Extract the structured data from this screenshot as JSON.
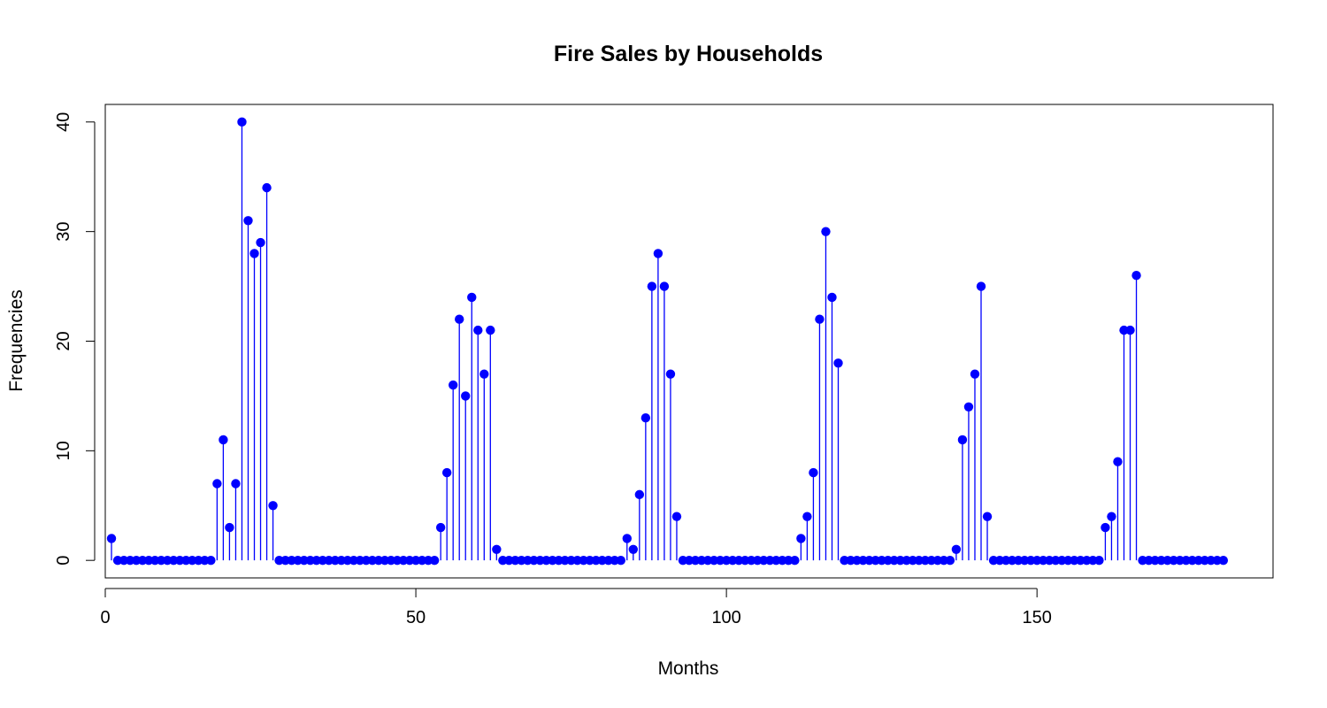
{
  "chart_data": {
    "type": "scatter",
    "style": "stem",
    "title": "Fire Sales by Households",
    "xlabel": "Months",
    "ylabel": "Frequencies",
    "xlim": [
      0,
      188
    ],
    "ylim": [
      -1.6,
      41.6
    ],
    "x_ticks": [
      0,
      50,
      100,
      150
    ],
    "y_ticks": [
      0,
      10,
      20,
      30,
      40
    ],
    "grid": false,
    "legend": "none",
    "color": "#0000ff",
    "x": [
      1,
      2,
      3,
      4,
      5,
      6,
      7,
      8,
      9,
      10,
      11,
      12,
      13,
      14,
      15,
      16,
      17,
      18,
      19,
      20,
      21,
      22,
      23,
      24,
      25,
      26,
      27,
      28,
      29,
      30,
      31,
      32,
      33,
      34,
      35,
      36,
      37,
      38,
      39,
      40,
      41,
      42,
      43,
      44,
      45,
      46,
      47,
      48,
      49,
      50,
      51,
      52,
      53,
      54,
      55,
      56,
      57,
      58,
      59,
      60,
      61,
      62,
      63,
      64,
      65,
      66,
      67,
      68,
      69,
      70,
      71,
      72,
      73,
      74,
      75,
      76,
      77,
      78,
      79,
      80,
      81,
      82,
      83,
      84,
      85,
      86,
      87,
      88,
      89,
      90,
      91,
      92,
      93,
      94,
      95,
      96,
      97,
      98,
      99,
      100,
      101,
      102,
      103,
      104,
      105,
      106,
      107,
      108,
      109,
      110,
      111,
      112,
      113,
      114,
      115,
      116,
      117,
      118,
      119,
      120,
      121,
      122,
      123,
      124,
      125,
      126,
      127,
      128,
      129,
      130,
      131,
      132,
      133,
      134,
      135,
      136,
      137,
      138,
      139,
      140,
      141,
      142,
      143,
      144,
      145,
      146,
      147,
      148,
      149,
      150,
      151,
      152,
      153,
      154,
      155,
      156,
      157,
      158,
      159,
      160,
      161,
      162,
      163,
      164,
      165,
      166,
      167,
      168,
      169,
      170,
      171,
      172,
      173,
      174,
      175,
      176,
      177,
      178,
      179,
      180
    ],
    "values": [
      2,
      0,
      0,
      0,
      0,
      0,
      0,
      0,
      0,
      0,
      0,
      0,
      0,
      0,
      0,
      0,
      0,
      7,
      11,
      3,
      7,
      40,
      31,
      28,
      29,
      34,
      5,
      0,
      0,
      0,
      0,
      0,
      0,
      0,
      0,
      0,
      0,
      0,
      0,
      0,
      0,
      0,
      0,
      0,
      0,
      0,
      0,
      0,
      0,
      0,
      0,
      0,
      0,
      3,
      8,
      16,
      22,
      15,
      24,
      21,
      17,
      21,
      1,
      0,
      0,
      0,
      0,
      0,
      0,
      0,
      0,
      0,
      0,
      0,
      0,
      0,
      0,
      0,
      0,
      0,
      0,
      0,
      0,
      2,
      1,
      6,
      13,
      25,
      28,
      25,
      17,
      4,
      0,
      0,
      0,
      0,
      0,
      0,
      0,
      0,
      0,
      0,
      0,
      0,
      0,
      0,
      0,
      0,
      0,
      0,
      0,
      2,
      4,
      8,
      22,
      30,
      24,
      18,
      0,
      0,
      0,
      0,
      0,
      0,
      0,
      0,
      0,
      0,
      0,
      0,
      0,
      0,
      0,
      0,
      0,
      0,
      1,
      11,
      14,
      17,
      25,
      4,
      0,
      0,
      0,
      0,
      0,
      0,
      0,
      0,
      0,
      0,
      0,
      0,
      0,
      0,
      0,
      0,
      0,
      0,
      3,
      4,
      9,
      21,
      21,
      26,
      0,
      0,
      0,
      0,
      0,
      0,
      0,
      0,
      0,
      0,
      0,
      0,
      0,
      0
    ]
  }
}
